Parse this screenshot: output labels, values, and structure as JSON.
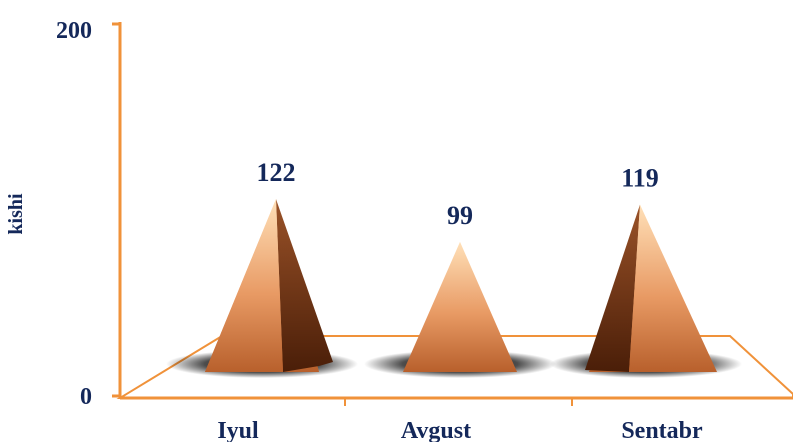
{
  "chart_data": {
    "type": "bar",
    "shape": "pyramid",
    "categories": [
      "Iyul",
      "Avgust",
      "Sentabr"
    ],
    "values": [
      122,
      99,
      119
    ],
    "data_labels": [
      "122",
      "99",
      "119"
    ],
    "ylabel": "kishi",
    "xlabel": "",
    "ylim": [
      0,
      200
    ],
    "y_ticks": [
      "0",
      "200"
    ],
    "grid": false,
    "colors": {
      "axis": "#f0923a",
      "text": "#14285a",
      "pyramid_light": "#ffe0b8",
      "pyramid_mid": "#e89a64",
      "pyramid_dark": "#7a3614"
    }
  }
}
